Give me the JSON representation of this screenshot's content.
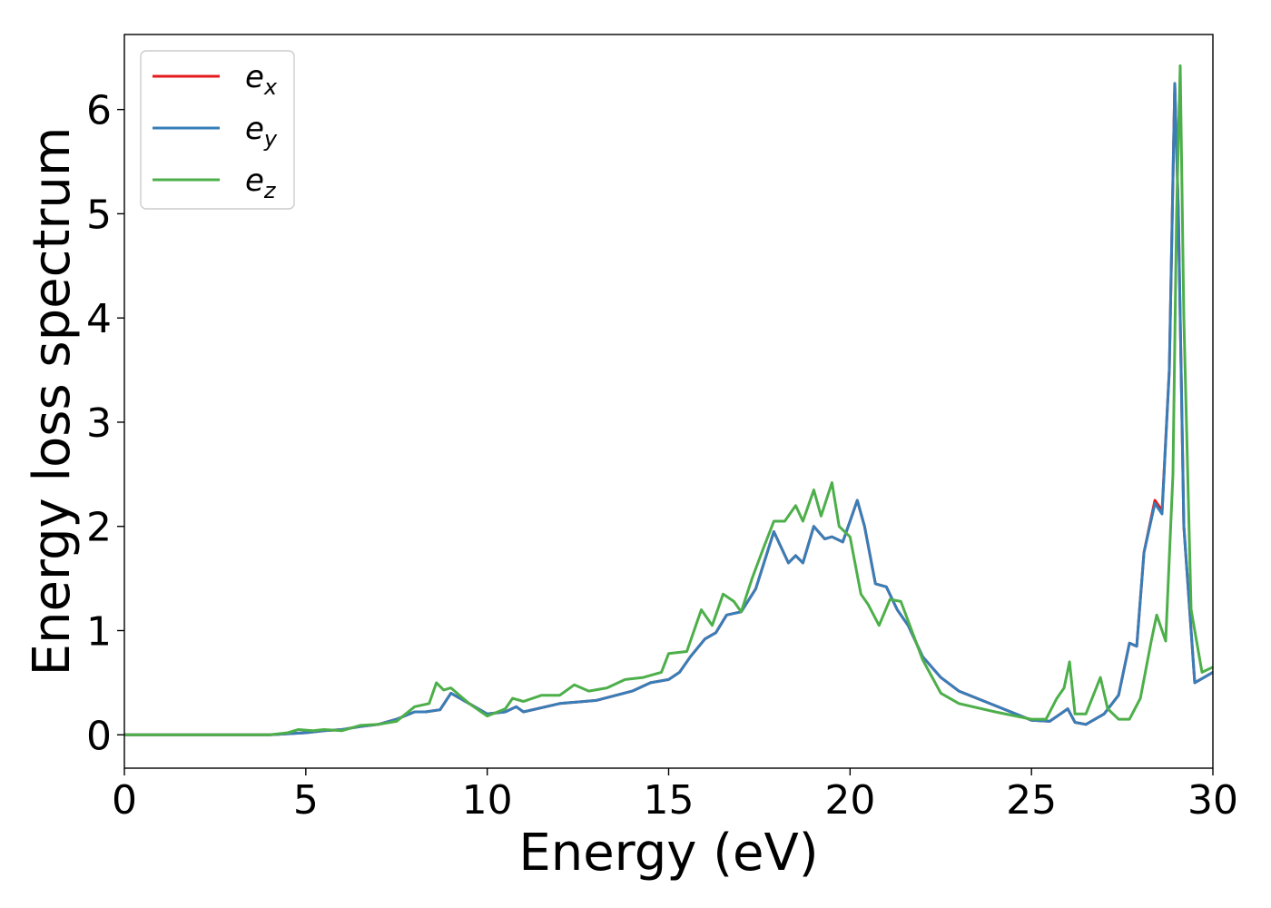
{
  "chart_data": {
    "type": "line",
    "title": "",
    "xlabel": "Energy (eV)",
    "ylabel": "Energy loss spectrum",
    "xlim": [
      0,
      30
    ],
    "ylim": [
      -0.32,
      6.72
    ],
    "xticks": [
      0,
      5,
      10,
      15,
      20,
      25,
      30
    ],
    "yticks": [
      0,
      1,
      2,
      3,
      4,
      5,
      6
    ],
    "grid": false,
    "legend_position": "top-left",
    "series": [
      {
        "name": "e",
        "subscript": "x",
        "color": "#e41a1c",
        "x": [
          0,
          2,
          4,
          4.5,
          5,
          5.5,
          6,
          6.5,
          7,
          7.5,
          8,
          8.3,
          8.7,
          9,
          9.5,
          10,
          10.5,
          10.8,
          11,
          12,
          13,
          14,
          14.5,
          15,
          15.3,
          15.6,
          16,
          16.3,
          16.6,
          17,
          17.4,
          17.9,
          18.1,
          18.3,
          18.5,
          18.7,
          19,
          19.3,
          19.5,
          19.8,
          20,
          20.2,
          20.4,
          20.7,
          21,
          21.3,
          21.6,
          22,
          22.5,
          23,
          24,
          25,
          25.5,
          25.8,
          26,
          26.2,
          26.5,
          27,
          27.4,
          27.7,
          27.9,
          28.1,
          28.4,
          28.6,
          28.8,
          28.95,
          29.05,
          29.2,
          29.5,
          30
        ],
        "y": [
          0,
          0,
          0,
          0.01,
          0.02,
          0.04,
          0.05,
          0.08,
          0.1,
          0.15,
          0.22,
          0.22,
          0.24,
          0.4,
          0.3,
          0.2,
          0.22,
          0.27,
          0.22,
          0.3,
          0.33,
          0.42,
          0.5,
          0.53,
          0.6,
          0.75,
          0.92,
          0.98,
          1.15,
          1.18,
          1.4,
          1.95,
          1.8,
          1.65,
          1.72,
          1.65,
          2.0,
          1.88,
          1.9,
          1.85,
          2.05,
          2.25,
          2.0,
          1.45,
          1.42,
          1.2,
          1.05,
          0.75,
          0.55,
          0.42,
          0.28,
          0.14,
          0.13,
          0.2,
          0.25,
          0.12,
          0.1,
          0.2,
          0.38,
          0.88,
          0.85,
          1.75,
          2.25,
          2.15,
          3.5,
          6.25,
          5.0,
          2.0,
          0.5,
          0.6
        ]
      },
      {
        "name": "e",
        "subscript": "y",
        "color": "#377eb8",
        "x": [
          0,
          2,
          4,
          4.5,
          5,
          5.5,
          6,
          6.5,
          7,
          7.5,
          8,
          8.3,
          8.7,
          9,
          9.5,
          10,
          10.5,
          10.8,
          11,
          12,
          13,
          14,
          14.5,
          15,
          15.3,
          15.6,
          16,
          16.3,
          16.6,
          17,
          17.4,
          17.9,
          18.1,
          18.3,
          18.5,
          18.7,
          19,
          19.3,
          19.5,
          19.8,
          20,
          20.2,
          20.4,
          20.7,
          21,
          21.3,
          21.6,
          22,
          22.5,
          23,
          24,
          25,
          25.5,
          25.8,
          26,
          26.2,
          26.5,
          27,
          27.4,
          27.7,
          27.9,
          28.1,
          28.4,
          28.6,
          28.8,
          28.95,
          29.05,
          29.2,
          29.5,
          30
        ],
        "y": [
          0,
          0,
          0,
          0.01,
          0.02,
          0.04,
          0.05,
          0.08,
          0.1,
          0.15,
          0.22,
          0.22,
          0.24,
          0.4,
          0.3,
          0.2,
          0.22,
          0.27,
          0.22,
          0.3,
          0.33,
          0.42,
          0.5,
          0.53,
          0.6,
          0.75,
          0.92,
          0.98,
          1.15,
          1.18,
          1.4,
          1.95,
          1.8,
          1.65,
          1.72,
          1.65,
          2.0,
          1.88,
          1.9,
          1.85,
          2.05,
          2.25,
          2.0,
          1.45,
          1.42,
          1.2,
          1.05,
          0.75,
          0.55,
          0.42,
          0.28,
          0.14,
          0.13,
          0.2,
          0.25,
          0.12,
          0.1,
          0.2,
          0.38,
          0.88,
          0.85,
          1.75,
          2.22,
          2.12,
          3.5,
          6.25,
          5.0,
          2.0,
          0.5,
          0.6
        ]
      },
      {
        "name": "e",
        "subscript": "z",
        "color": "#4daf4a",
        "x": [
          0,
          2,
          4,
          4.5,
          4.8,
          5.2,
          5.5,
          6,
          6.5,
          7,
          7.5,
          8,
          8.4,
          8.6,
          8.8,
          9,
          9.5,
          10,
          10.5,
          10.7,
          11,
          11.5,
          12,
          12.4,
          12.8,
          13.3,
          13.8,
          14.3,
          14.8,
          15,
          15.5,
          15.9,
          16.2,
          16.5,
          16.8,
          17,
          17.3,
          17.6,
          17.9,
          18.2,
          18.5,
          18.7,
          19,
          19.2,
          19.5,
          19.7,
          20,
          20.3,
          20.5,
          20.8,
          21.1,
          21.4,
          21.7,
          22,
          22.5,
          23,
          24,
          25,
          25.4,
          25.7,
          25.9,
          26.05,
          26.2,
          26.5,
          26.9,
          27.1,
          27.4,
          27.7,
          28.0,
          28.3,
          28.45,
          28.7,
          28.9,
          29.0,
          29.1,
          29.2,
          29.4,
          29.7,
          30
        ],
        "y": [
          0,
          0,
          0,
          0.02,
          0.05,
          0.04,
          0.05,
          0.04,
          0.09,
          0.1,
          0.13,
          0.27,
          0.3,
          0.5,
          0.43,
          0.45,
          0.3,
          0.18,
          0.25,
          0.35,
          0.32,
          0.38,
          0.38,
          0.48,
          0.42,
          0.45,
          0.53,
          0.55,
          0.6,
          0.78,
          0.8,
          1.2,
          1.05,
          1.35,
          1.28,
          1.18,
          1.5,
          1.78,
          2.05,
          2.05,
          2.2,
          2.05,
          2.35,
          2.1,
          2.42,
          2.0,
          1.9,
          1.35,
          1.25,
          1.05,
          1.3,
          1.28,
          1.0,
          0.72,
          0.4,
          0.3,
          0.22,
          0.15,
          0.15,
          0.35,
          0.45,
          0.7,
          0.2,
          0.2,
          0.55,
          0.25,
          0.15,
          0.15,
          0.35,
          0.9,
          1.15,
          0.9,
          2.5,
          5.0,
          6.42,
          4.0,
          1.2,
          0.6,
          0.65
        ]
      }
    ]
  }
}
